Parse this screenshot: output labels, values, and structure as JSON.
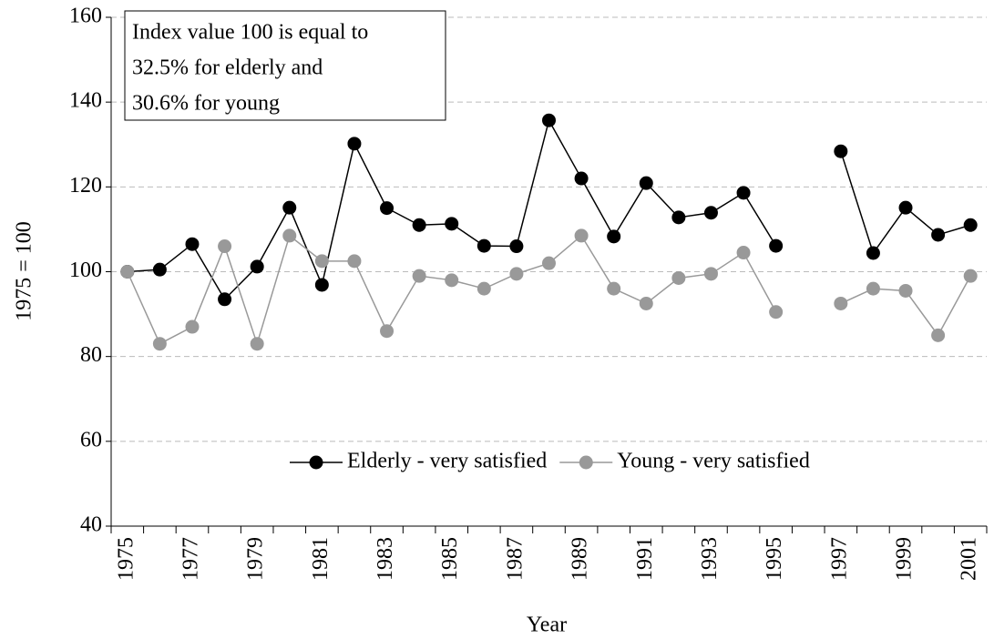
{
  "chart_data": {
    "type": "line",
    "y_label": "1975 = 100",
    "x_label": "Year",
    "annotation": [
      "Index value 100 is equal to",
      "32.5% for elderly and",
      "30.6% for young"
    ],
    "categories": [
      "1975",
      null,
      "1977",
      null,
      "1979",
      null,
      "1981",
      null,
      "1983",
      null,
      "1985",
      null,
      "1987",
      null,
      "1989",
      null,
      "1991",
      null,
      "1993",
      null,
      "1995",
      null,
      "1997",
      null,
      "1999",
      null,
      "2001"
    ],
    "series": [
      {
        "name": "Elderly - very satisfied",
        "color": "#000000",
        "values": [
          100,
          100.5,
          106.5,
          93.5,
          101.2,
          115.1,
          96.9,
          130.2,
          115,
          111,
          111.3,
          106.1,
          106,
          135.7,
          122,
          108.3,
          120.9,
          112.8,
          113.9,
          118.6,
          106.1,
          null,
          128.4,
          104.4,
          115.1,
          108.7,
          111
        ]
      },
      {
        "name": "Young - very satisfied",
        "color": "#999999",
        "values": [
          100,
          83,
          87,
          106,
          83,
          108.5,
          102.5,
          102.5,
          86,
          99,
          98,
          96,
          99.5,
          102,
          108.5,
          96,
          92.5,
          98.5,
          99.5,
          104.5,
          90.5,
          null,
          92.5,
          96,
          95.5,
          85,
          99
        ]
      }
    ],
    "ylim": [
      40,
      160
    ],
    "yticks": [
      40,
      60,
      80,
      100,
      120,
      140,
      160
    ],
    "grid": true,
    "legend": "lower center"
  }
}
